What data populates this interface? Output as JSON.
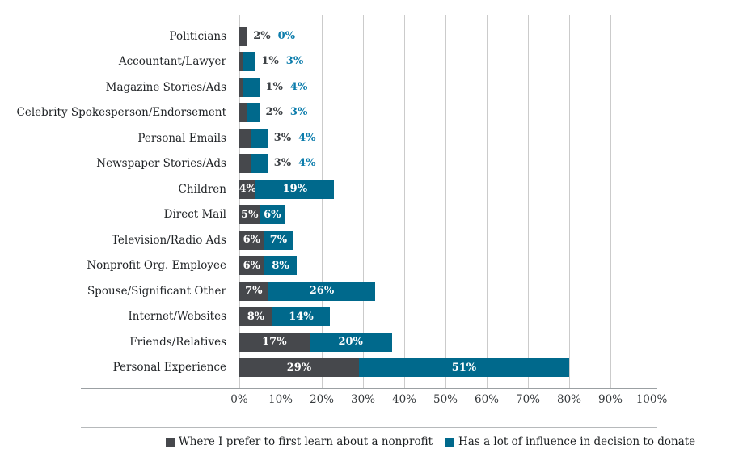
{
  "chart_data": {
    "type": "bar",
    "orientation": "horizontal",
    "stacked": true,
    "title": "",
    "xlabel": "",
    "ylabel": "",
    "xlim": [
      0,
      100
    ],
    "grid": "vertical",
    "legend_position": "bottom",
    "categories": [
      "Politicians",
      "Accountant/Lawyer",
      "Magazine Stories/Ads",
      "Celebrity Spokesperson/Endorsement",
      "Personal Emails",
      "Newspaper Stories/Ads",
      "Children",
      "Direct Mail",
      "Television/Radio Ads",
      "Nonprofit Org. Employee",
      "Spouse/Significant Other",
      "Internet/Websites",
      "Friends/Relatives",
      "Personal Experience"
    ],
    "series": [
      {
        "name": "Where I prefer to first learn about a nonprofit",
        "color": "#46484c",
        "outside_label_color": "#3c4044",
        "values": [
          2,
          1,
          1,
          2,
          3,
          3,
          4,
          5,
          6,
          6,
          7,
          8,
          17,
          29
        ]
      },
      {
        "name": "Has a lot of influence in decision to donate",
        "color": "#00698c",
        "outside_label_color": "#0d7dac",
        "values": [
          0,
          3,
          4,
          3,
          4,
          4,
          19,
          6,
          7,
          8,
          26,
          14,
          20,
          51
        ]
      }
    ],
    "value_labels": [
      [
        "2%",
        "0%"
      ],
      [
        "1%",
        "3%"
      ],
      [
        "1%",
        "4%"
      ],
      [
        "2%",
        "3%"
      ],
      [
        "3%",
        "4%"
      ],
      [
        "3%",
        "4%"
      ],
      [
        "4%",
        "19%"
      ],
      [
        "5%",
        "6%"
      ],
      [
        "6%",
        "7%"
      ],
      [
        "6%",
        "8%"
      ],
      [
        "7%",
        "26%"
      ],
      [
        "8%",
        "14%"
      ],
      [
        "17%",
        "20%"
      ],
      [
        "29%",
        "51%"
      ]
    ],
    "labels_inside": [
      false,
      false,
      false,
      false,
      false,
      false,
      true,
      true,
      true,
      true,
      true,
      true,
      true,
      true
    ],
    "x_ticks": [
      "0%",
      "10%",
      "20%",
      "30%",
      "40%",
      "50%",
      "60%",
      "70%",
      "80%",
      "90%",
      "100%"
    ]
  },
  "ui_colors": {
    "background": "#ffffff",
    "gridline": "#cbcbcb",
    "axis_line": "#9ba0a3",
    "separator_line": "#b6b9bb",
    "category_text": "#212427",
    "tick_text": "#35393c",
    "inside_label_text": "#ffffff"
  }
}
